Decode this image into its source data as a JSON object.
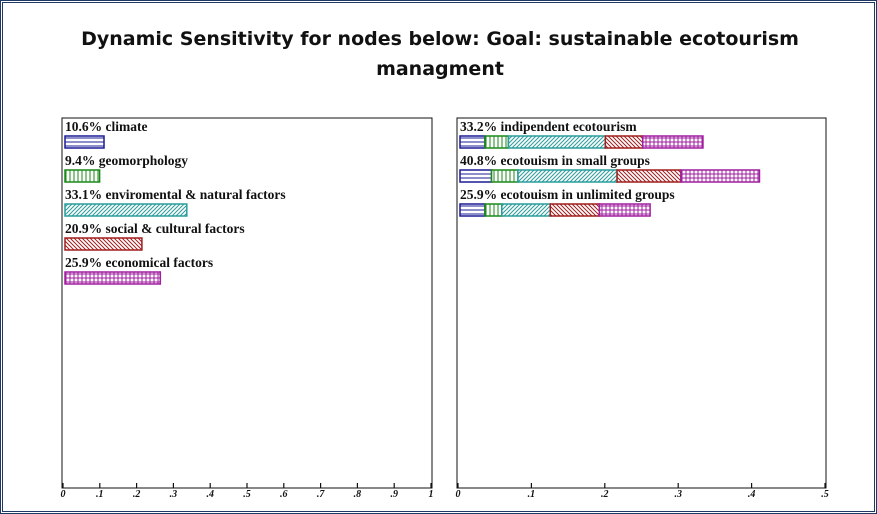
{
  "title": "Dynamic Sensitivity for nodes below: Goal: sustainable ecotourism managment",
  "chart_data": [
    {
      "type": "bar",
      "categories": [
        "climate",
        "geomorphology",
        "enviromental & natural factors",
        "social & cultural factors",
        "economical factors"
      ],
      "values": [
        0.106,
        0.094,
        0.331,
        0.209,
        0.259
      ],
      "value_labels": [
        "10.6%",
        "9.4%",
        "33.1%",
        "20.9%",
        "25.9%"
      ],
      "colors": [
        "#1c1c96",
        "#1a8a1a",
        "#2a9c9c",
        "#a01e1e",
        "#a01ea0"
      ],
      "patterns": [
        "horizontal",
        "vertical",
        "diagonal",
        "diagonal-back",
        "grid"
      ],
      "xlim": [
        0,
        1
      ],
      "xticks": [
        0,
        {
          "value": 0.1,
          "label": ".1"
        },
        {
          "value": 0.2,
          "label": ".2"
        },
        {
          "value": 0.3,
          "label": ".3"
        },
        {
          "value": 0.4,
          "label": ".4"
        },
        {
          "value": 0.5,
          "label": ".5"
        },
        {
          "value": 0.6,
          "label": ".6"
        },
        {
          "value": 0.7,
          "label": ".7"
        },
        {
          "value": 0.8,
          "label": ".8"
        },
        {
          "value": 0.9,
          "label": ".9"
        },
        1
      ]
    },
    {
      "type": "stacked_bar",
      "categories": [
        "indipendent ecotourism",
        "ecotouism in small groups",
        "ecotouism in unlimited groups"
      ],
      "values": [
        0.332,
        0.408,
        0.259
      ],
      "value_labels": [
        "33.2%",
        "40.8%",
        "25.9%"
      ],
      "segments": [
        [
          0.034,
          0.032,
          0.132,
          0.051,
          0.082
        ],
        [
          0.043,
          0.036,
          0.135,
          0.087,
          0.107
        ],
        [
          0.034,
          0.023,
          0.066,
          0.067,
          0.069
        ]
      ],
      "colors": [
        "#1c1c96",
        "#1a8a1a",
        "#2a9c9c",
        "#a01e1e",
        "#a01ea0"
      ],
      "patterns": [
        "horizontal",
        "vertical",
        "diagonal",
        "diagonal-back",
        "grid"
      ],
      "xlim": [
        0,
        0.5
      ],
      "xticks": [
        0,
        {
          "value": 0.1,
          "label": ".1"
        },
        {
          "value": 0.2,
          "label": ".2"
        },
        {
          "value": 0.3,
          "label": ".3"
        },
        {
          "value": 0.4,
          "label": ".4"
        },
        {
          "value": 0.5,
          "label": ".5"
        }
      ]
    }
  ]
}
